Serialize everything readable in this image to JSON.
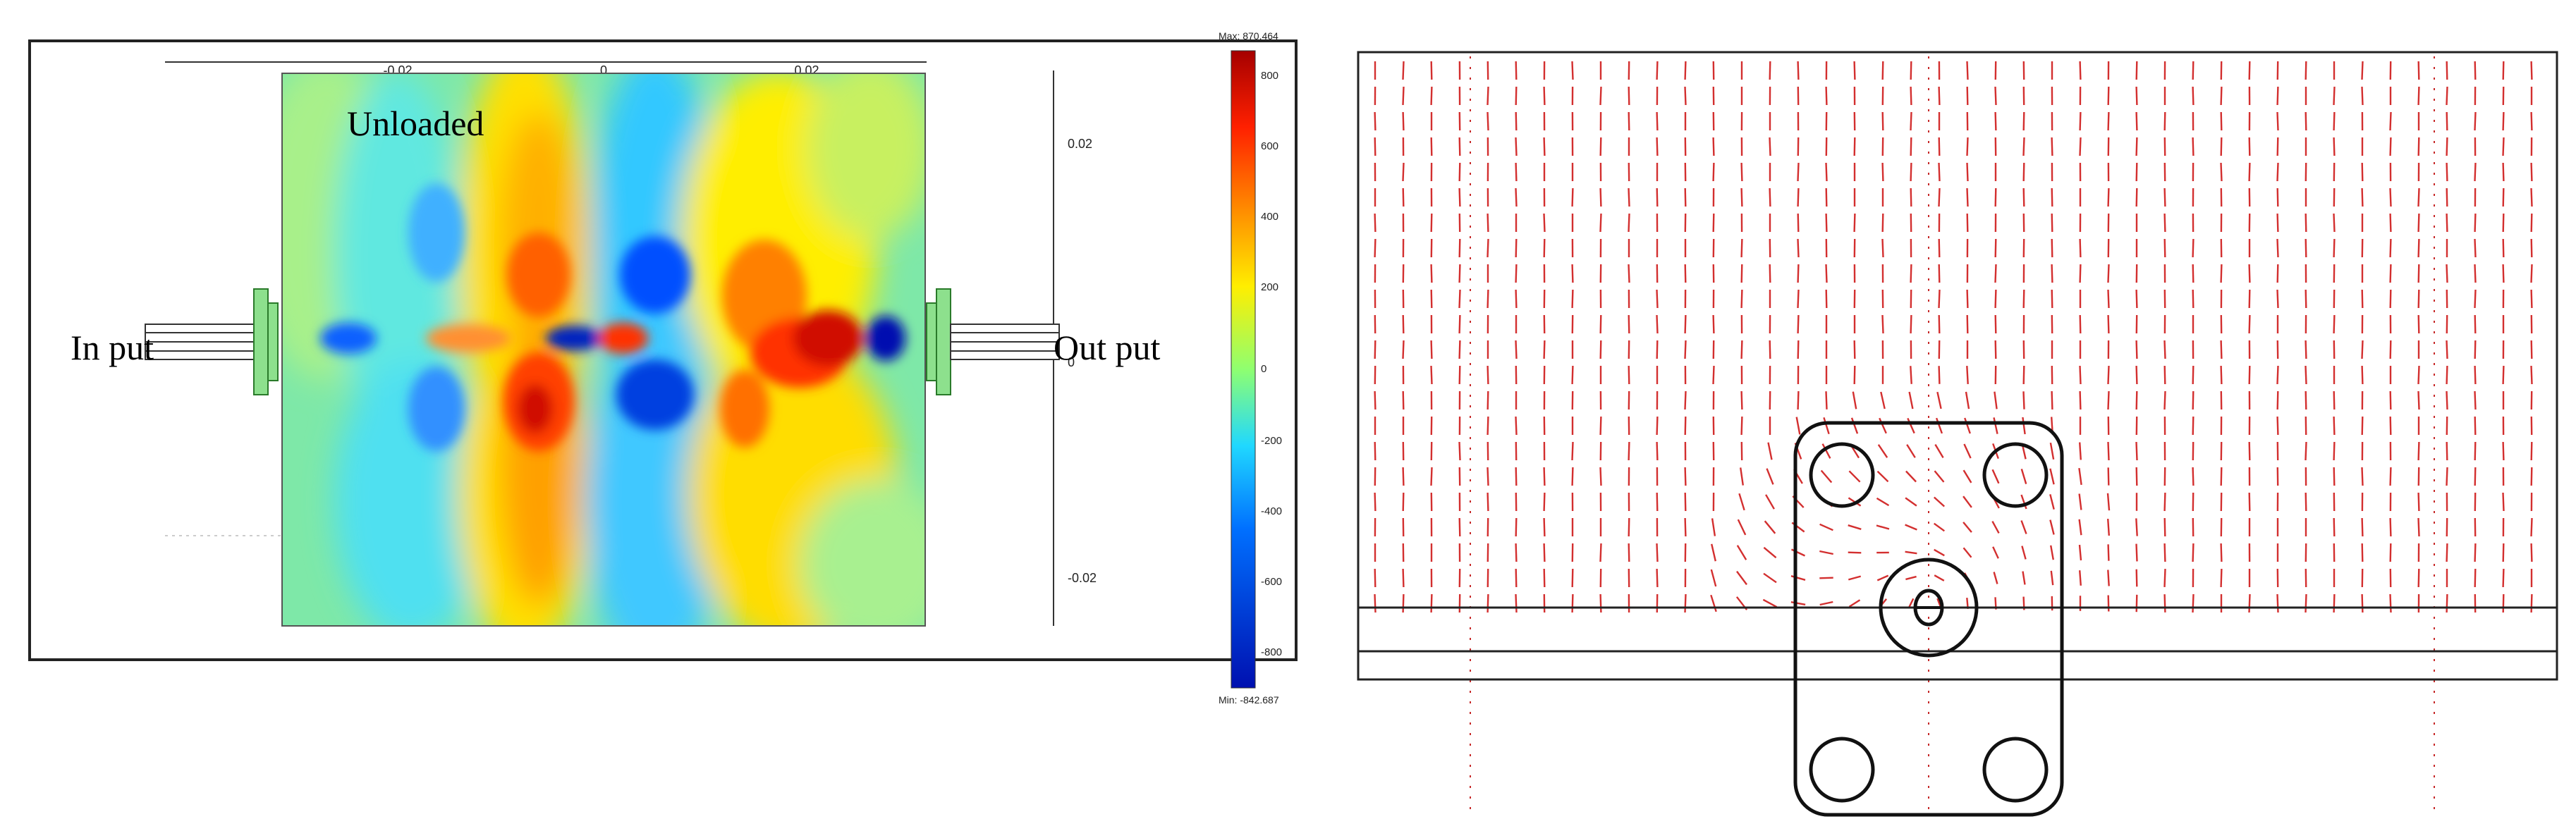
{
  "left": {
    "title": "Unloaded",
    "input_label": "In put",
    "output_label": "Out put",
    "x_ticks": [
      "-0.02",
      "0",
      "0.02"
    ],
    "y_ticks": [
      "0.02",
      "0",
      "-0.02"
    ]
  },
  "colorbar": {
    "max_label": "Max: 870.464",
    "min_label": "Min: -842.687",
    "ticks": [
      "800",
      "600",
      "400",
      "200",
      "0",
      "-200",
      "-400",
      "-600",
      "-800"
    ],
    "colors": [
      "#a50000",
      "#ff2000",
      "#ff8c00",
      "#ffee00",
      "#8fff70",
      "#20d8ff",
      "#0070ff",
      "#0010b0"
    ]
  }
}
